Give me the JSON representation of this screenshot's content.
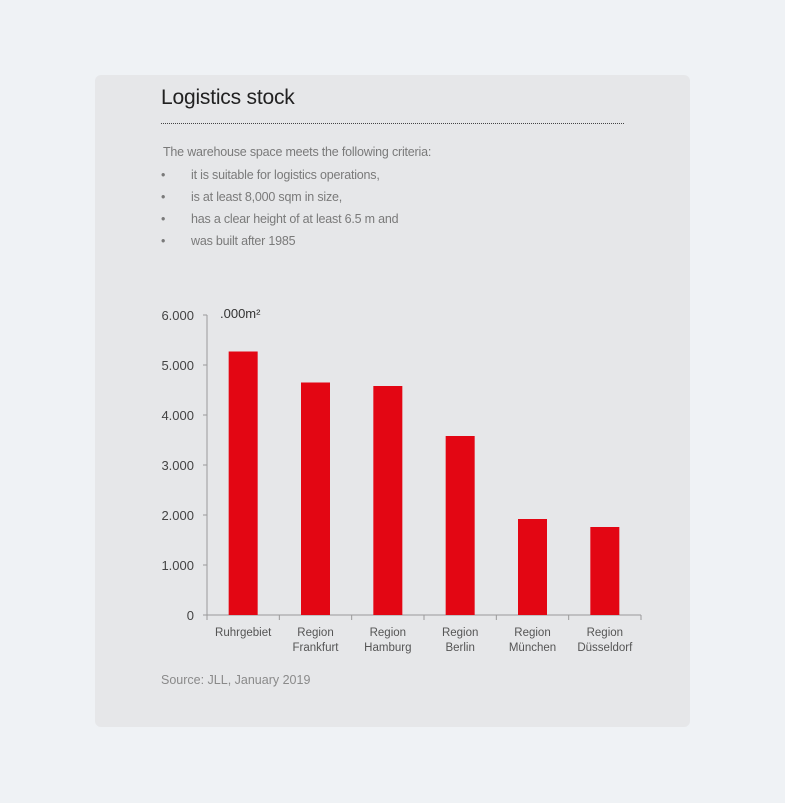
{
  "panel": {
    "title": "Logistics stock",
    "intro": "The warehouse space meets the following criteria:",
    "bullet_glyph": "•",
    "criteria": [
      "it is suitable for logistics operations,",
      "is at least 8,000 sqm in size,",
      "has a clear height of at least 6.5 m and",
      "was built after 1985"
    ],
    "source": "Source: JLL, January 2019"
  },
  "colors": {
    "bar": "#e30613",
    "axis": "#9a9a9a"
  },
  "chart_data": {
    "type": "bar",
    "unit_label": ".000m²",
    "categories": [
      [
        "Ruhrgebiet"
      ],
      [
        "Region",
        "Frankfurt"
      ],
      [
        "Region",
        "Hamburg"
      ],
      [
        "Region",
        "Berlin"
      ],
      [
        "Region",
        "München"
      ],
      [
        "Region",
        "Düsseldorf"
      ]
    ],
    "values": [
      5270,
      4650,
      4580,
      3580,
      1920,
      1760
    ],
    "ylim": [
      0,
      6000
    ],
    "yticks": [
      0,
      1000,
      2000,
      3000,
      4000,
      5000,
      6000
    ],
    "ytick_labels": [
      "0",
      "1.000",
      "2.000",
      "3.000",
      "4.000",
      "5.000",
      "6.000"
    ],
    "grid": false,
    "legend": "none"
  }
}
